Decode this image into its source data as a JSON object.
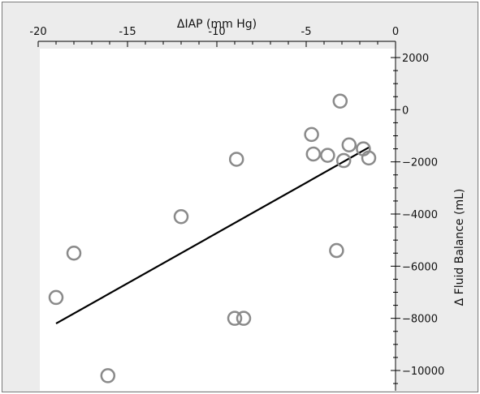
{
  "chart_data": {
    "type": "scatter",
    "title": "",
    "xlabel": "ΔIAP (mm Hg)",
    "ylabel": "Δ Fluid Balance (mL)",
    "xlim": [
      -20,
      0
    ],
    "ylim": [
      -11000,
      2000
    ],
    "x_axis_position": "top",
    "y_axis_position": "right",
    "x_ticks": [
      -20,
      -15,
      -10,
      -5,
      0
    ],
    "y_ticks": [
      2000,
      0,
      -2000,
      -4000,
      -6000,
      -8000,
      -10000
    ],
    "x_tick_labels": [
      "-20",
      "-15",
      "-10",
      "-5",
      "0"
    ],
    "y_tick_labels": [
      "2000",
      "0",
      "−2000",
      "−4000",
      "−6000",
      "−8000",
      "−10000"
    ],
    "grid": false,
    "legend": "none",
    "marker": "open-circle",
    "marker_color": "#8a8a8a",
    "line_color": "#000000",
    "background": "#ececec",
    "plot_background": "#ffffff",
    "points": [
      {
        "x": -19.0,
        "y": -7200
      },
      {
        "x": -18.0,
        "y": -5500
      },
      {
        "x": -16.1,
        "y": -10200
      },
      {
        "x": -12.0,
        "y": -4100
      },
      {
        "x": -9.0,
        "y": -8000
      },
      {
        "x": -8.5,
        "y": -8000
      },
      {
        "x": -8.9,
        "y": -1900
      },
      {
        "x": -4.7,
        "y": -950
      },
      {
        "x": -4.6,
        "y": -1700
      },
      {
        "x": -3.8,
        "y": -1750
      },
      {
        "x": -3.3,
        "y": -5400
      },
      {
        "x": -3.1,
        "y": 330
      },
      {
        "x": -2.9,
        "y": -1950
      },
      {
        "x": -2.6,
        "y": -1350
      },
      {
        "x": -1.8,
        "y": -1500
      },
      {
        "x": -1.5,
        "y": -1850
      }
    ],
    "trend_line": {
      "x": [
        -19.0,
        -1.5
      ],
      "y": [
        -8200,
        -1450
      ]
    }
  }
}
